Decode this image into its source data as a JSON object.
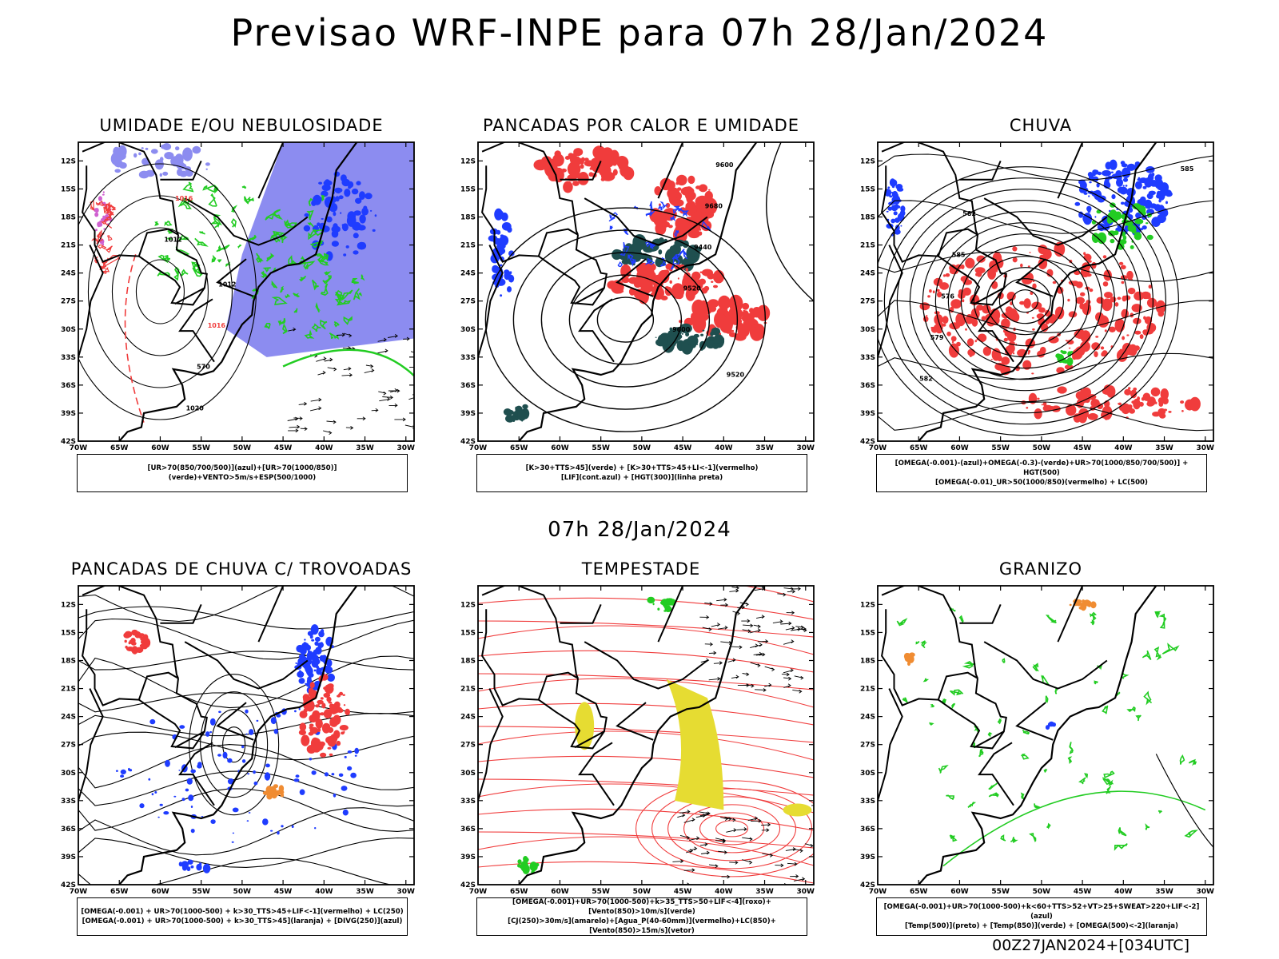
{
  "header": {
    "title": "Previsao WRF-INPE  para 07h 28/Jan/2024",
    "mid_time": "07h 28/Jan/2024",
    "footer": "00Z27JAN2024+[034UTC]"
  },
  "axes": {
    "lat_labels": [
      "12S",
      "15S",
      "18S",
      "21S",
      "24S",
      "27S",
      "30S",
      "33S",
      "36S",
      "39S",
      "42S"
    ],
    "lon_labels": [
      "70W",
      "65W",
      "60W",
      "55W",
      "50W",
      "45W",
      "40W",
      "35W",
      "30W"
    ]
  },
  "colors": {
    "blue": "#1f3cff",
    "light_blue": "#8c8cf0",
    "green": "#22cc22",
    "red": "#f03c3c",
    "dark_teal": "#1f4f4f",
    "yellow": "#e6dc32",
    "orange": "#f08c32",
    "purple": "#c828c8"
  },
  "panels": [
    {
      "title": "UMIDADE E/OU NEBULOSIDADE",
      "legend": [
        "[UR>70(850/700/500)](azul)+[UR>70(1000/850)](verde)+VENTO>5m/s+ESP(500/1000)"
      ],
      "labels": [
        "1012",
        "1016",
        "1020",
        "570",
        "1016",
        "1012"
      ]
    },
    {
      "title": "PANCADAS POR CALOR E UMIDADE",
      "legend": [
        "[K>30+TTS>45](verde) + [K>30+TTS>45+LI<-1](vermelho)",
        "[LIF](cont.azul) + [HGT(300)](linha preta)"
      ],
      "labels": [
        "9600",
        "9520",
        "9440",
        "9680",
        "9600",
        "9520"
      ]
    },
    {
      "title": "CHUVA",
      "legend": [
        "[OMEGA(-0.001)-(azul)+OMEGA(-0.3)-(verde)+UR>70(1000/850/700/500)] + HGT(500)",
        "[OMEGA(-0.01)_UR>50(1000/850)(vermelho) + LC(500)"
      ],
      "labels": [
        "585",
        "582",
        "579",
        "576",
        "585",
        "582"
      ]
    },
    {
      "title": "PANCADAS DE CHUVA C/ TROVOADAS",
      "legend": [
        "[OMEGA(-0.001) + UR>70(1000-500) + k>30_TTS>45+LIF<-1](vermelho) + LC(250)",
        "[OMEGA(-0.001) + UR>70(1000-500) + k>30_TTS>45](laranja) + [DIVG(250)](azul)"
      ],
      "labels": []
    },
    {
      "title": "TEMPESTADE",
      "legend": [
        "[OMEGA(-0.001)+UR>70(1000-500)+k>35_TTS>50+LIF<-4](roxo)+[Vento(850)>10m/s](verde)",
        "[CJ(250)>30m/s](amarelo)+[Agua_P(40-60mm)](vermelho)+LC(850)+[Vento(850)>15m/s](vetor)"
      ],
      "labels": []
    },
    {
      "title": "GRANIZO",
      "legend": [
        "[OMEGA(-0.001)+UR>70(1000-500)+k<60+TTS>52+VT>25+SWEAT>220+LIF<-2](azul)",
        "[Temp(500)](preto) + [Temp(850)](verde) + [OMEGA(500)<-2](laranja)"
      ],
      "labels": []
    }
  ]
}
